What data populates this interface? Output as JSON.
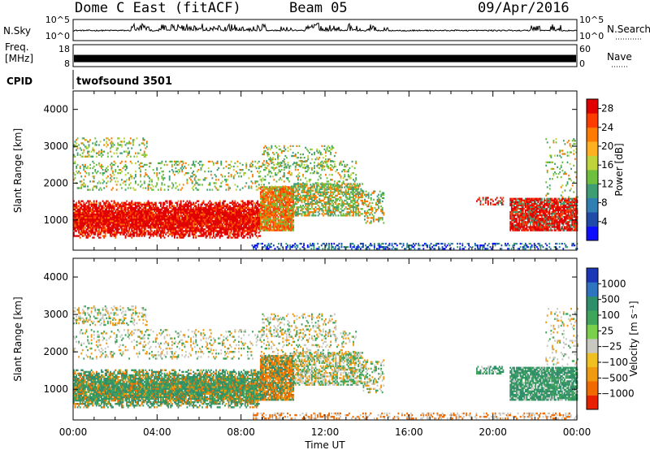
{
  "header": {
    "station": "Dome C East (fitACF)",
    "beam": "Beam 05",
    "date": "09/Apr/2016"
  },
  "chart_data": [
    {
      "type": "bar",
      "panel": "noise",
      "left_label": "N.Sky",
      "right_label": "N.Search",
      "left_ticks": [
        "10^5",
        "10^0"
      ],
      "right_ticks": [
        "10^5",
        "10^0"
      ],
      "x_range_hours": [
        0,
        24
      ],
      "baseline_level": 0.45,
      "burst_hours": [
        3.0,
        3.5,
        4.2,
        4.9,
        5.3,
        6.0,
        6.8,
        7.5,
        9.0,
        11.3,
        11.8,
        12.4,
        13.3,
        14.2,
        22.0,
        23.0
      ]
    },
    {
      "type": "bar",
      "panel": "freq-nave",
      "left_label_top": "Freq.",
      "left_label_bottom": "[MHz]",
      "right_label": "Nave",
      "left_ticks": [
        "18",
        "8"
      ],
      "right_ticks": [
        "60",
        "0"
      ],
      "x_range_hours": [
        0,
        24
      ],
      "freq_level_fraction": 0.35
    },
    {
      "type": "table",
      "panel": "cpid",
      "label": "CPID",
      "value": "twofsound 3501"
    },
    {
      "type": "heatmap",
      "panel": "power",
      "ylabel": "Slant Range [km]",
      "ylim": [
        180,
        4500
      ],
      "yticks": [
        1000,
        2000,
        3000,
        4000
      ],
      "x_range_hours": [
        0,
        24
      ],
      "colorbar_label": "Power [dB]",
      "colorbar_ticks": [
        4,
        8,
        12,
        16,
        20,
        24,
        28
      ],
      "colorbar_range": [
        0,
        30
      ],
      "colorbar_colors": [
        "#0d0dff",
        "#1f4aa8",
        "#2f7fb2",
        "#3f9d73",
        "#6fbf3f",
        "#bfd43a",
        "#ffb020",
        "#ff7a00",
        "#ff3c00",
        "#e00000"
      ]
    },
    {
      "type": "heatmap",
      "panel": "velocity",
      "ylabel": "Slant Range [km]",
      "ylim": [
        180,
        4500
      ],
      "yticks": [
        1000,
        2000,
        3000,
        4000
      ],
      "x_range_hours": [
        0,
        24
      ],
      "xticks": [
        "00:00",
        "04:00",
        "08:00",
        "12:00",
        "16:00",
        "20:00",
        "00:00"
      ],
      "xlabel": "Time UT",
      "colorbar_label": "Velocity [m s⁻¹]",
      "colorbar_ticks": [
        "1000",
        "500",
        "100",
        "25",
        "−25",
        "−100",
        "−500",
        "−1000"
      ],
      "colorbar_colors": [
        "#1a37b8",
        "#2f74c0",
        "#2f8f6b",
        "#3fa55a",
        "#7ad04a",
        "#c8c8c0",
        "#f0c020",
        "#f09a10",
        "#f06a00",
        "#e82000"
      ]
    }
  ]
}
